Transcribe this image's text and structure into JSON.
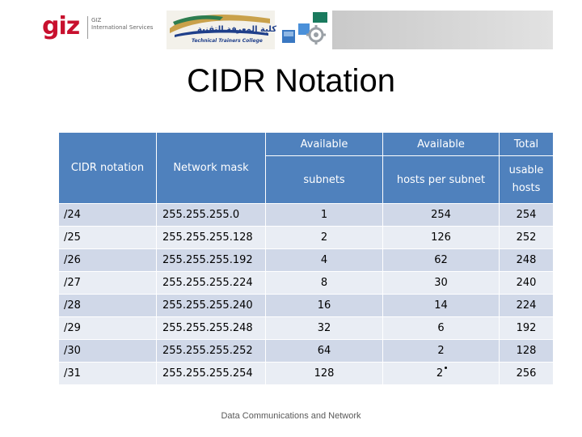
{
  "logos": {
    "giz_word": "giz",
    "giz_sub": "GIZ\nInternational Services",
    "tec_arabic": "كلية المعرفة التقنية",
    "tec_english": "Technical Trainers College"
  },
  "slide": {
    "title": "CIDR Notation",
    "footer": "Data Communications and Network"
  },
  "table": {
    "headers": {
      "cidr_notation": "CIDR notation",
      "network_mask": "Network mask",
      "available_1_top": "Available",
      "available_1_bottom": "subnets",
      "available_2_top": "Available",
      "available_2_bottom": "hosts per subnet",
      "total_top": "Total",
      "total_bottom": "usable hosts"
    },
    "rows": [
      {
        "cidr": "/24",
        "mask": "255.255.255.0",
        "subnets": "1",
        "hosts": "254",
        "total": "254"
      },
      {
        "cidr": "/25",
        "mask": "255.255.255.128",
        "subnets": "2",
        "hosts": "126",
        "total": "252"
      },
      {
        "cidr": "/26",
        "mask": "255.255.255.192",
        "subnets": "4",
        "hosts": "62",
        "total": "248"
      },
      {
        "cidr": "/27",
        "mask": "255.255.255.224",
        "subnets": "8",
        "hosts": "30",
        "total": "240"
      },
      {
        "cidr": "/28",
        "mask": "255.255.255.240",
        "subnets": "16",
        "hosts": "14",
        "total": "224"
      },
      {
        "cidr": "/29",
        "mask": "255.255.255.248",
        "subnets": "32",
        "hosts": "6",
        "total": "192"
      },
      {
        "cidr": "/30",
        "mask": "255.255.255.252",
        "subnets": "64",
        "hosts": "2",
        "total": "128"
      },
      {
        "cidr": "/31",
        "mask": "255.255.255.254",
        "subnets": "128",
        "hosts": "2",
        "total": "256"
      }
    ]
  },
  "colors": {
    "header_blue": "#4f81bd",
    "row_odd": "#d0d8e8",
    "row_even": "#e9edf4",
    "giz_red": "#c8102e"
  }
}
